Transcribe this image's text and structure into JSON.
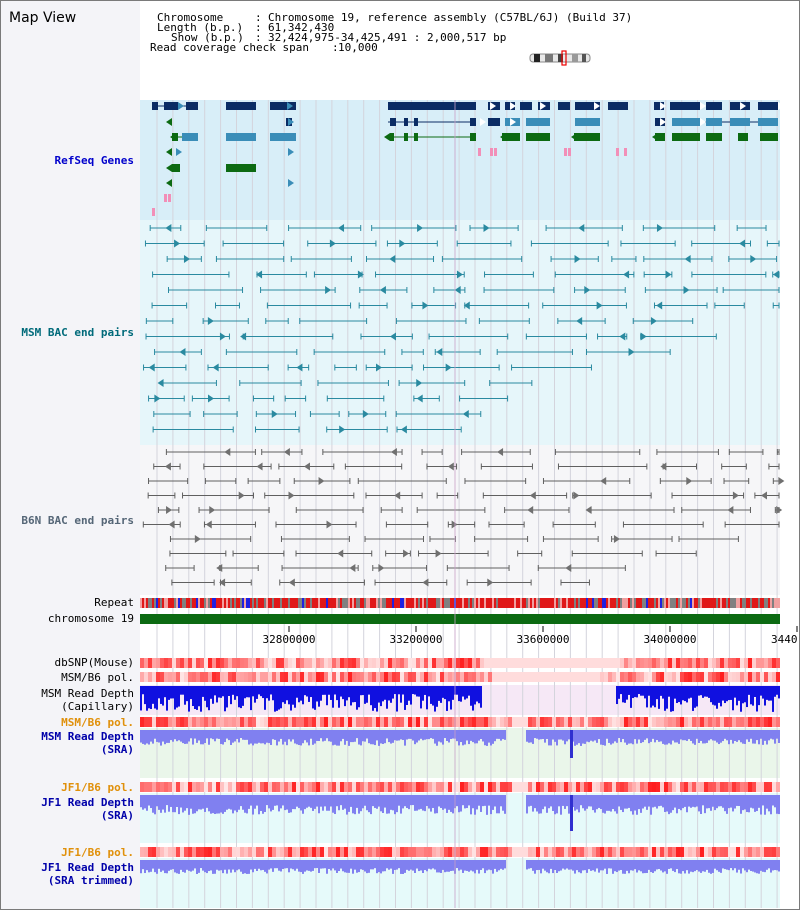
{
  "title": "Map View",
  "info": {
    "chromosome_key": "Chromosome",
    "chromosome_value": "Chromosome 19, reference assembly (C57BL/6J) (Build 37)",
    "length_key": "Length (b.p.)",
    "length_value": "61,342,430",
    "show_key": "Show (b.p.)",
    "show_value": "32,424,975-34,425,491 : 2,000,517 bp",
    "coverage_key": "Read coverage check span",
    "coverage_value": "10,000"
  },
  "tracks": {
    "refseq": "RefSeq Genes",
    "msm_bac": "MSM BAC end pairs",
    "b6n_bac": "B6N BAC end pairs",
    "repeat": "Repeat",
    "chromosome": "chromosome 19",
    "dbsnp": "dbSNP(Mouse)",
    "msm_b6_pol": "MSM/B6 pol.",
    "msm_depth_cap_1": "MSM Read Depth",
    "msm_depth_cap_2": "(Capillary)",
    "msm_b6_pol_2": "MSM/B6 pol.",
    "msm_depth_sra_1": "MSM Read Depth",
    "msm_depth_sra_2": "(SRA)",
    "jf1_b6_pol": "JF1/B6 pol.",
    "jf1_depth_sra_1": "JF1 Read Depth",
    "jf1_depth_sra_2": "(SRA)",
    "jf1_b6_pol_2": "JF1/B6 pol.",
    "jf1_depth_trim_1": "JF1 Read Depth",
    "jf1_depth_trim_2": "(SRA trimmed)"
  },
  "ruler": {
    "ticks": [
      "32800000",
      "33200000",
      "33600000",
      "34000000",
      "3440"
    ]
  },
  "colors": {
    "refseq_label": "#0000cc",
    "msm_bac_label": "#006a7a",
    "b6n_bac_label": "#556677",
    "pol_label_orange": "#e0900a",
    "depth_label_blue": "#0000aa",
    "gene_dark": "#0b2c64",
    "gene_mid": "#3a8db8",
    "gene_green": "#0c6a12",
    "gene_pink": "#f28fb8",
    "msm_line": "#2a8aa0",
    "b6n_line": "#606060",
    "chrom_bar": "#0c6a12",
    "depth_dark": "#1010e0",
    "depth_light": "#8080f0"
  }
}
